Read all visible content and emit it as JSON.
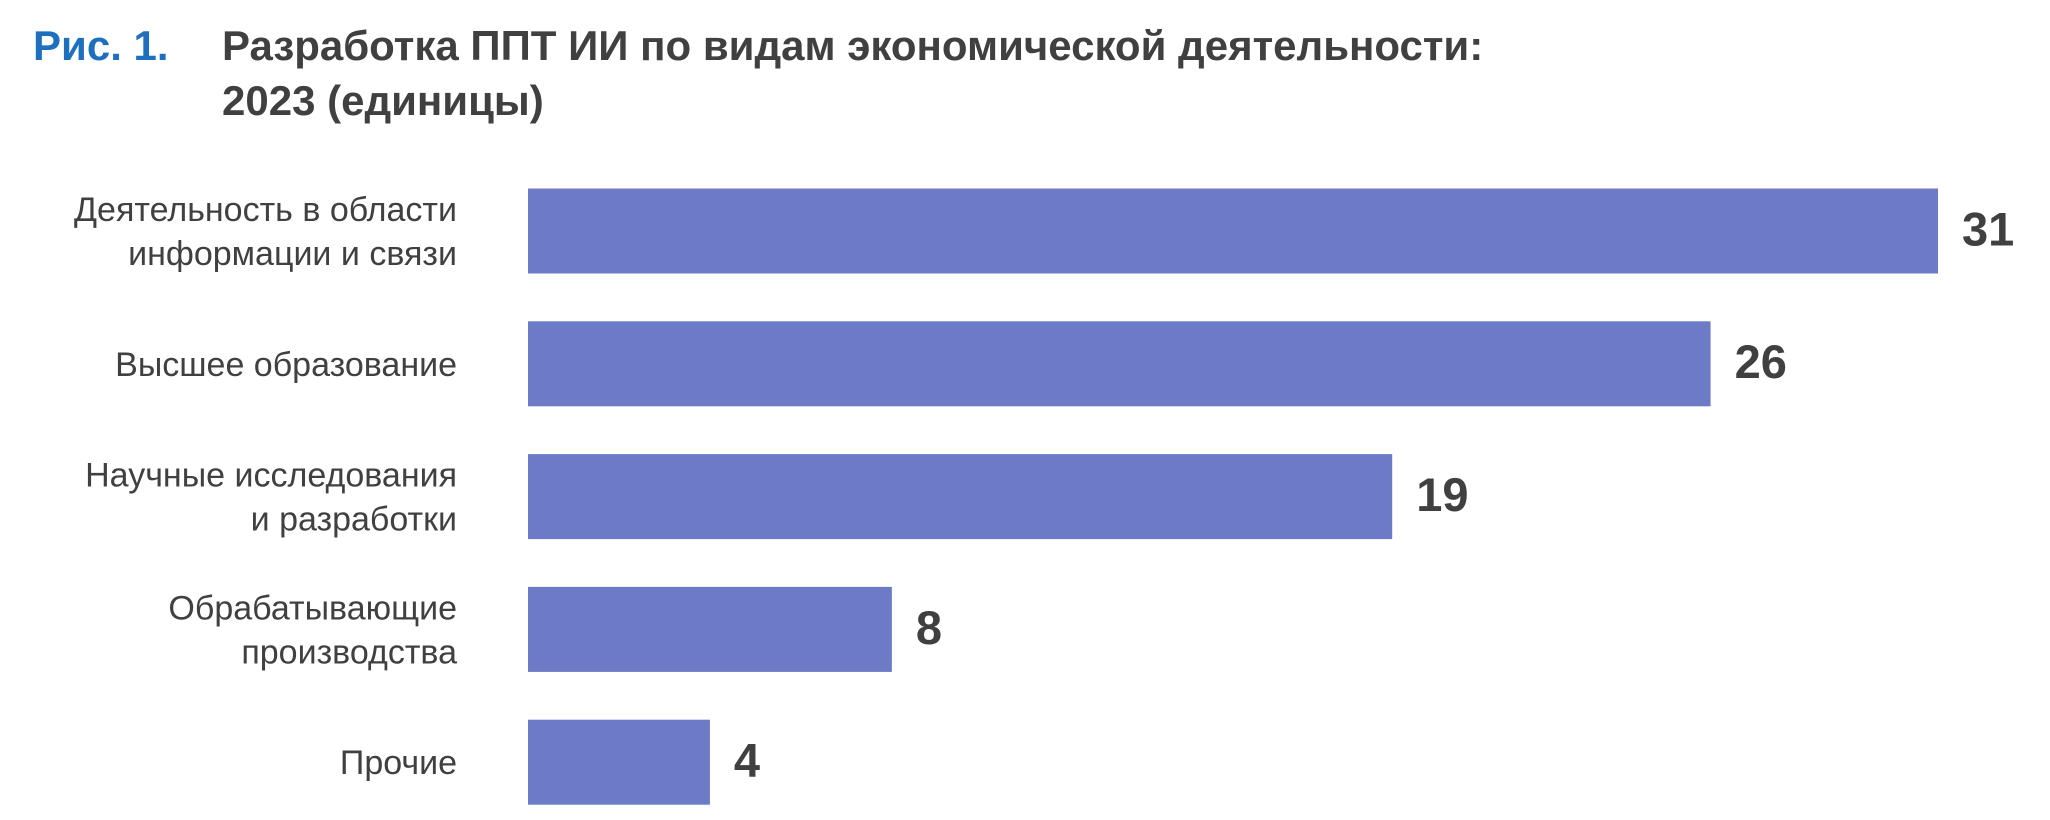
{
  "chart_data": {
    "type": "barh",
    "figure_label": "Рис. 1.",
    "title": [
      "Разработка ППТ ИИ по видам экономической деятельности:",
      "2023 (единицы)"
    ],
    "categories": [
      [
        "Деятельность в области",
        "информации и связи"
      ],
      [
        "Высшее образование"
      ],
      [
        "Научные исследования",
        "и разработки"
      ],
      [
        "Обрабатывающие",
        "производства"
      ],
      [
        "Прочие"
      ]
    ],
    "values": [
      31,
      26,
      19,
      8,
      4
    ],
    "color": "#6d7ac6"
  }
}
